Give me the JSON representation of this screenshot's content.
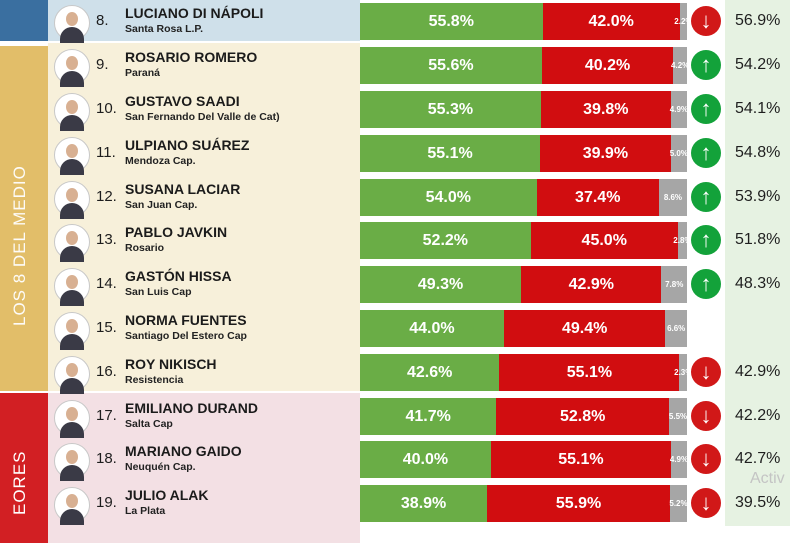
{
  "groups": [
    {
      "label": "",
      "color": "#3a6fa0"
    },
    {
      "label": "LOS 8 DEL MEDIO",
      "color": "#e2be69"
    },
    {
      "label": "EORES",
      "color": "#d21f23"
    }
  ],
  "watermark": "Activ",
  "colors": {
    "green": "#6aad46",
    "red": "#d10d10",
    "grey": "#a6a6a6",
    "up": "#13a23a",
    "down": "#d11818"
  },
  "chart_data": {
    "type": "bar",
    "stacked": true,
    "title": "",
    "series": [
      {
        "values": [
          55.8,
          55.6,
          55.3,
          55.1,
          54.0,
          52.2,
          49.3,
          44.0,
          42.6,
          41.7,
          40.0,
          38.9
        ]
      },
      {
        "values": [
          42.0,
          40.2,
          39.8,
          39.9,
          37.4,
          45.0,
          42.9,
          49.4,
          55.1,
          52.8,
          55.1,
          55.9
        ]
      },
      {
        "values": [
          2.2,
          4.2,
          4.9,
          5.0,
          8.6,
          2.8,
          7.8,
          6.6,
          2.3,
          5.5,
          4.9,
          5.2
        ]
      }
    ],
    "rows": [
      {
        "rank": "8.",
        "name": "LUCIANO DI NÁPOLI",
        "city": "Santa Rosa L.P.",
        "positive": "55.8%",
        "negative": "42.0%",
        "unknown": "2.2%",
        "trend": "down",
        "result": "56.9%"
      },
      {
        "rank": "9.",
        "name": "ROSARIO ROMERO",
        "city": "Paraná",
        "positive": "55.6%",
        "negative": "40.2%",
        "unknown": "4.2%",
        "trend": "up",
        "result": "54.2%"
      },
      {
        "rank": "10.",
        "name": "GUSTAVO SAADI",
        "city": "San Fernando Del Valle de Cat)",
        "positive": "55.3%",
        "negative": "39.8%",
        "unknown": "4.9%",
        "trend": "up",
        "result": "54.1%"
      },
      {
        "rank": "11.",
        "name": "ULPIANO SUÁREZ",
        "city": "Mendoza Cap.",
        "positive": "55.1%",
        "negative": "39.9%",
        "unknown": "5.0%",
        "trend": "up",
        "result": "54.8%"
      },
      {
        "rank": "12.",
        "name": "SUSANA LACIAR",
        "city": "San Juan Cap.",
        "positive": "54.0%",
        "negative": "37.4%",
        "unknown": "8.6%",
        "trend": "up",
        "result": "53.9%"
      },
      {
        "rank": "13.",
        "name": "PABLO JAVKIN",
        "city": "Rosario",
        "positive": "52.2%",
        "negative": "45.0%",
        "unknown": "2.8%",
        "trend": "up",
        "result": "51.8%"
      },
      {
        "rank": "14.",
        "name": "GASTÓN HISSA",
        "city": "San Luis Cap",
        "positive": "49.3%",
        "negative": "42.9%",
        "unknown": "7.8%",
        "trend": "up",
        "result": "48.3%"
      },
      {
        "rank": "15.",
        "name": "NORMA FUENTES",
        "city": "Santiago Del Estero Cap",
        "positive": "44.0%",
        "negative": "49.4%",
        "unknown": "6.6%",
        "trend": "",
        "result": ""
      },
      {
        "rank": "16.",
        "name": "ROY NIKISCH",
        "city": "Resistencia",
        "positive": "42.6%",
        "negative": "55.1%",
        "unknown": "2.3%",
        "trend": "down",
        "result": "42.9%"
      },
      {
        "rank": "17.",
        "name": "EMILIANO DURAND",
        "city": "Salta Cap",
        "positive": "41.7%",
        "negative": "52.8%",
        "unknown": "5.5%",
        "trend": "down",
        "result": "42.2%"
      },
      {
        "rank": "18.",
        "name": "MARIANO GAIDO",
        "city": "Neuquén Cap.",
        "positive": "40.0%",
        "negative": "55.1%",
        "unknown": "4.9%",
        "trend": "down",
        "result": "42.7%"
      },
      {
        "rank": "19.",
        "name": "JULIO ALAK",
        "city": "La Plata",
        "positive": "38.9%",
        "negative": "55.9%",
        "unknown": "5.2%",
        "trend": "down",
        "result": "39.5%"
      }
    ]
  }
}
